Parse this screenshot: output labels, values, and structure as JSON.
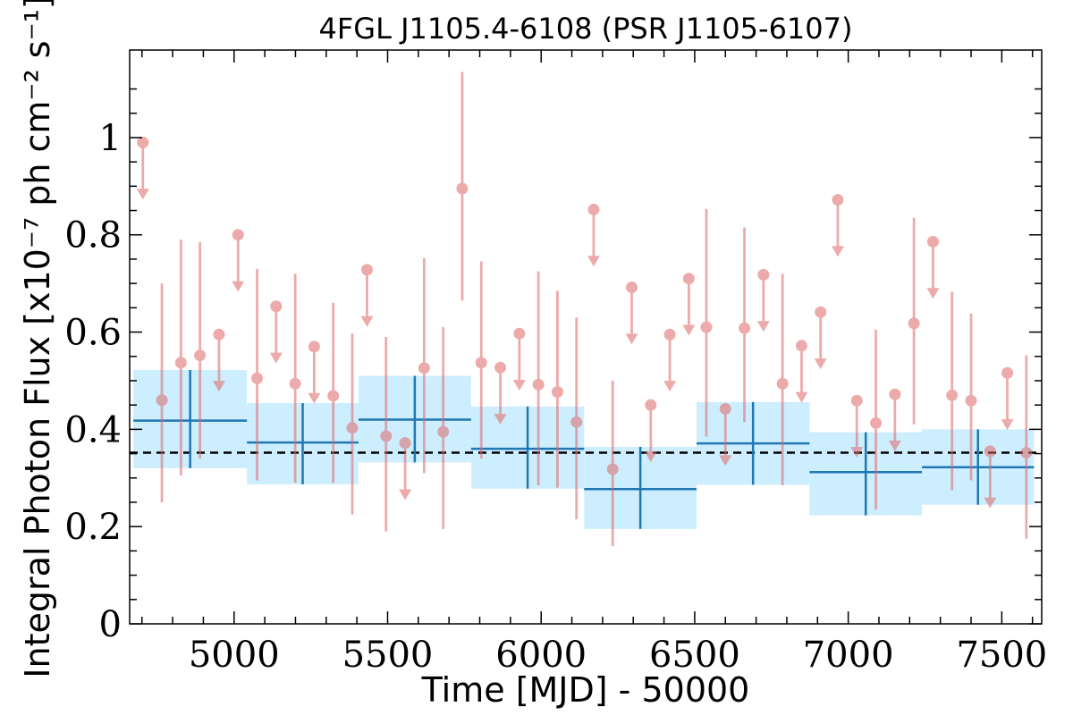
{
  "chart_data": {
    "type": "scatter",
    "title": "4FGL J1105.4-6108 (PSR J1105-6107)",
    "xlabel": "Time [MJD] - 50000",
    "ylabel": "Integral Photon Flux [x10⁻⁷ ph cm⁻² s⁻¹]",
    "xlim": [
      4660,
      7630
    ],
    "ylim": [
      0,
      1.18
    ],
    "x_ticks": [
      5000,
      5500,
      6000,
      6500,
      7000,
      7500
    ],
    "x_tick_labels": [
      "5000",
      "5500",
      "6000",
      "6500",
      "7000",
      "7500"
    ],
    "y_ticks": [
      0,
      0.2,
      0.4,
      0.6,
      0.8,
      1.0
    ],
    "y_tick_labels": [
      "0",
      "0.2",
      "0.4",
      "0.6",
      "0.8",
      "1"
    ],
    "average_flux": 0.352,
    "colors": {
      "short_bins": "#e06666",
      "long_bin_line": "#1f77b4",
      "long_bin_band": "#cdeeff",
      "average_line": "#000000"
    },
    "series": [
      {
        "kind": "short_bins",
        "points": [
          {
            "x": 4703,
            "y": 0.99,
            "ul": true
          },
          {
            "x": 4765,
            "y": 0.46,
            "lo": 0.25,
            "hi": 0.7
          },
          {
            "x": 4827,
            "y": 0.537,
            "lo": 0.305,
            "hi": 0.79
          },
          {
            "x": 4889,
            "y": 0.552,
            "lo": 0.34,
            "hi": 0.785
          },
          {
            "x": 4951,
            "y": 0.595,
            "ul": true
          },
          {
            "x": 5013,
            "y": 0.8,
            "ul": true
          },
          {
            "x": 5075,
            "y": 0.505,
            "lo": 0.295,
            "hi": 0.73
          },
          {
            "x": 5137,
            "y": 0.653,
            "ul": true
          },
          {
            "x": 5199,
            "y": 0.494,
            "lo": 0.29,
            "hi": 0.72
          },
          {
            "x": 5261,
            "y": 0.57,
            "ul": true
          },
          {
            "x": 5323,
            "y": 0.469,
            "lo": 0.29,
            "hi": 0.66
          },
          {
            "x": 5385,
            "y": 0.403,
            "lo": 0.225,
            "hi": 0.597
          },
          {
            "x": 5433,
            "y": 0.728,
            "ul": true
          },
          {
            "x": 5495,
            "y": 0.386,
            "lo": 0.19,
            "hi": 0.59
          },
          {
            "x": 5557,
            "y": 0.372,
            "ul": true
          },
          {
            "x": 5619,
            "y": 0.526,
            "lo": 0.31,
            "hi": 0.752
          },
          {
            "x": 5681,
            "y": 0.395,
            "lo": 0.195,
            "hi": 0.61
          },
          {
            "x": 5743,
            "y": 0.895,
            "lo": 0.665,
            "hi": 1.135
          },
          {
            "x": 5805,
            "y": 0.537,
            "lo": 0.34,
            "hi": 0.745
          },
          {
            "x": 5867,
            "y": 0.527,
            "ul": true
          },
          {
            "x": 5929,
            "y": 0.597,
            "ul": true
          },
          {
            "x": 5991,
            "y": 0.492,
            "lo": 0.285,
            "hi": 0.725
          },
          {
            "x": 6053,
            "y": 0.477,
            "lo": 0.28,
            "hi": 0.685
          },
          {
            "x": 6115,
            "y": 0.415,
            "lo": 0.215,
            "hi": 0.63
          },
          {
            "x": 6171,
            "y": 0.852,
            "ul": true
          },
          {
            "x": 6233,
            "y": 0.318,
            "lo": 0.16,
            "hi": 0.5
          },
          {
            "x": 6295,
            "y": 0.692,
            "ul": true
          },
          {
            "x": 6357,
            "y": 0.45,
            "ul": true
          },
          {
            "x": 6419,
            "y": 0.595,
            "ul": true
          },
          {
            "x": 6481,
            "y": 0.71,
            "ul": true
          },
          {
            "x": 6538,
            "y": 0.61,
            "lo": 0.385,
            "hi": 0.853
          },
          {
            "x": 6600,
            "y": 0.442,
            "ul": true
          },
          {
            "x": 6662,
            "y": 0.608,
            "lo": 0.415,
            "hi": 0.815
          },
          {
            "x": 6724,
            "y": 0.718,
            "ul": true
          },
          {
            "x": 6786,
            "y": 0.494,
            "lo": 0.285,
            "hi": 0.72
          },
          {
            "x": 6848,
            "y": 0.572,
            "ul": true
          },
          {
            "x": 6910,
            "y": 0.641,
            "ul": true
          },
          {
            "x": 6966,
            "y": 0.872,
            "ul": true
          },
          {
            "x": 7028,
            "y": 0.459,
            "ul": true
          },
          {
            "x": 7090,
            "y": 0.413,
            "lo": 0.235,
            "hi": 0.605
          },
          {
            "x": 7152,
            "y": 0.472,
            "ul": true
          },
          {
            "x": 7214,
            "y": 0.618,
            "lo": 0.41,
            "hi": 0.835
          },
          {
            "x": 7276,
            "y": 0.786,
            "ul": true
          },
          {
            "x": 7338,
            "y": 0.47,
            "lo": 0.275,
            "hi": 0.683
          },
          {
            "x": 7400,
            "y": 0.459,
            "lo": 0.295,
            "hi": 0.638
          },
          {
            "x": 7462,
            "y": 0.355,
            "ul": true
          },
          {
            "x": 7518,
            "y": 0.516,
            "ul": true
          },
          {
            "x": 7580,
            "y": 0.352,
            "lo": 0.175,
            "hi": 0.552
          }
        ]
      },
      {
        "kind": "long_bins",
        "bins": [
          {
            "x0": 4672,
            "x1": 5042,
            "y": 0.418,
            "lo": 0.32,
            "hi": 0.522
          },
          {
            "x0": 5042,
            "x1": 5405,
            "y": 0.373,
            "lo": 0.287,
            "hi": 0.454
          },
          {
            "x0": 5405,
            "x1": 5772,
            "y": 0.42,
            "lo": 0.332,
            "hi": 0.51
          },
          {
            "x0": 5772,
            "x1": 6140,
            "y": 0.36,
            "lo": 0.278,
            "hi": 0.447
          },
          {
            "x0": 6140,
            "x1": 6506,
            "y": 0.277,
            "lo": 0.195,
            "hi": 0.364
          },
          {
            "x0": 6506,
            "x1": 6874,
            "y": 0.371,
            "lo": 0.286,
            "hi": 0.456
          },
          {
            "x0": 6874,
            "x1": 7240,
            "y": 0.312,
            "lo": 0.223,
            "hi": 0.394
          },
          {
            "x0": 7240,
            "x1": 7605,
            "y": 0.322,
            "lo": 0.245,
            "hi": 0.4
          }
        ]
      }
    ]
  }
}
